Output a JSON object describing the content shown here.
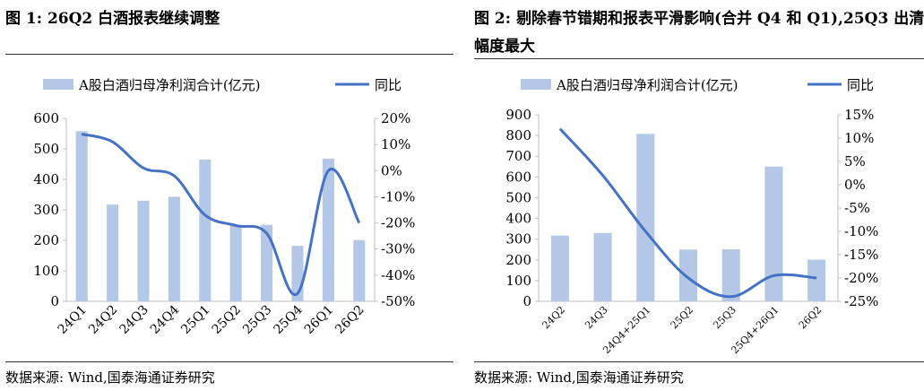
{
  "fig1": {
    "title": "图 1:  26Q2 白酒报表继续调整",
    "source": "数据来源:  Wind,国泰海通证券研究",
    "legend_bar": "A股白酒归母净利润合计(亿元)",
    "legend_line": "同比",
    "colors": {
      "bar": "#b4c7e7",
      "line": "#4472c4"
    },
    "chart_data": {
      "type": "bar+line",
      "categories": [
        "24Q1",
        "24Q2",
        "24Q3",
        "24Q4",
        "25Q1",
        "25Q2",
        "25Q3",
        "25Q4",
        "26Q1",
        "26Q2"
      ],
      "series": [
        {
          "name": "A股白酒归母净利润合计(亿元)",
          "type": "bar",
          "axis": "left",
          "values": [
            558,
            317,
            330,
            343,
            465,
            250,
            251,
            182,
            468,
            201
          ]
        },
        {
          "name": "同比",
          "type": "line",
          "axis": "right",
          "values": [
            14,
            11,
            1,
            -2,
            -17,
            -21,
            -24,
            -47,
            0,
            -20
          ]
        }
      ],
      "ylim_left": [
        0,
        600
      ],
      "yticks_left": [
        "0",
        "100",
        "200",
        "300",
        "400",
        "500",
        "600"
      ],
      "ylim_right": [
        -50,
        20
      ],
      "yticks_right": [
        "-50%",
        "-40%",
        "-30%",
        "-20%",
        "-10%",
        "0%",
        "10%",
        "20%"
      ],
      "legend": "top"
    }
  },
  "fig2": {
    "title": "图 2:  剔除春节错期和报表平滑影响(合并 Q4 和 Q1),25Q3 出清幅度最大",
    "source": "数据来源:  Wind,国泰海通证券研究",
    "legend_bar": "A股白酒归母净利润合计(亿元)",
    "legend_line": "同比",
    "colors": {
      "bar": "#b4c7e7",
      "line": "#4472c4"
    },
    "chart_data": {
      "type": "bar+line",
      "categories": [
        "24Q2",
        "24Q3",
        "24Q4+25Q1",
        "25Q2",
        "25Q3",
        "25Q4+26Q1",
        "26Q2"
      ],
      "series": [
        {
          "name": "A股白酒归母净利润合计(亿元)",
          "type": "bar",
          "axis": "left",
          "values": [
            317,
            330,
            808,
            250,
            251,
            650,
            201
          ]
        },
        {
          "name": "同比",
          "type": "line",
          "axis": "right",
          "values": [
            12,
            2,
            -10,
            -20,
            -24,
            -19.5,
            -20
          ]
        }
      ],
      "ylim_left": [
        0,
        900
      ],
      "yticks_left": [
        "0",
        "100",
        "200",
        "300",
        "400",
        "500",
        "600",
        "700",
        "800",
        "900"
      ],
      "ylim_right": [
        -25,
        15
      ],
      "yticks_right": [
        "-25%",
        "-20%",
        "-15%",
        "-10%",
        "-5%",
        "0%",
        "5%",
        "10%",
        "15%"
      ],
      "legend": "top"
    }
  }
}
